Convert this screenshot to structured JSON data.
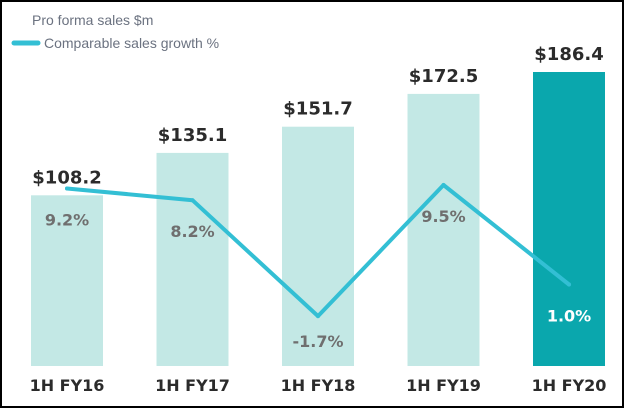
{
  "chart_data": {
    "type": "bar",
    "categories": [
      "1H FY16",
      "1H FY17",
      "1H FY18",
      "1H FY19",
      "1H FY20"
    ],
    "series": [
      {
        "name": "Pro forma sales $m",
        "type": "bar",
        "values": [
          108.2,
          135.1,
          151.7,
          172.5,
          186.4
        ],
        "labels": [
          "$108.2",
          "$135.1",
          "$151.7",
          "$172.5",
          "$186.4"
        ]
      },
      {
        "name": "Comparable sales growth %",
        "type": "line",
        "values": [
          9.2,
          8.2,
          -1.7,
          9.5,
          1.0
        ],
        "labels": [
          "9.2%",
          "8.2%",
          "-1.7%",
          "9.5%",
          "1.0%"
        ]
      }
    ],
    "legend": {
      "position": "top-left"
    },
    "colors": {
      "bar": "#c3e8e5",
      "bar_highlight": "#0aa7ad",
      "line": "#33bfd4",
      "text": "#2b2b2b",
      "growth_text": "#6f6f6f",
      "growth_text_highlight": "#ffffff"
    }
  }
}
